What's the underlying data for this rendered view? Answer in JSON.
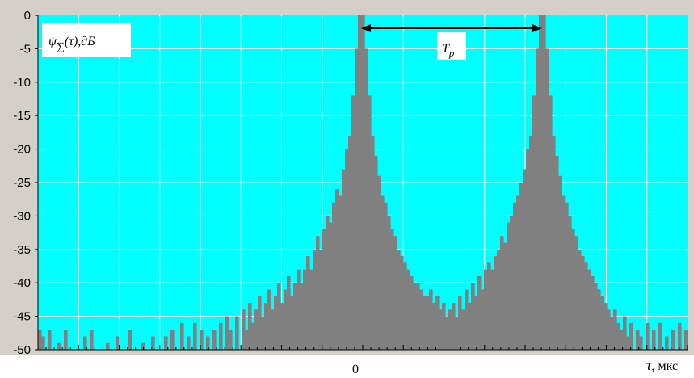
{
  "chart_data": {
    "type": "area",
    "title": "",
    "ylabel": "ψ∑(τ),∂Б",
    "xlabel": "τ, мкс",
    "x_tick_labels": [
      "0"
    ],
    "y_ticks": [
      0,
      -5,
      -10,
      -15,
      -20,
      -25,
      -30,
      -35,
      -40,
      -45,
      -50
    ],
    "ylim": [
      -50,
      0
    ],
    "grid": true,
    "background_color": "#00FFFF",
    "fill_color": "#808080",
    "grid_color": "#FFFFFF",
    "annotation": {
      "label": "T",
      "subscript": "p",
      "type": "double-arrow between peaks"
    },
    "series": [
      {
        "values": [
          -47,
          -48,
          -50,
          -47,
          -50,
          -50,
          -49,
          -50,
          -47,
          -50,
          -50,
          -50,
          -50,
          -50,
          -48,
          -50,
          -47,
          -50,
          -50,
          -50,
          -50,
          -49,
          -50,
          -50,
          -48,
          -50,
          -50,
          -50,
          -47,
          -50,
          -50,
          -50,
          -49,
          -50,
          -50,
          -48,
          -50,
          -50,
          -50,
          -48,
          -50,
          -47,
          -50,
          -50,
          -46,
          -50,
          -48,
          -50,
          -46,
          -50,
          -47,
          -50,
          -48,
          -50,
          -47,
          -50,
          -46,
          -50,
          -45,
          -47,
          -50,
          -45,
          -50,
          -44,
          -47,
          -43,
          -46,
          -44,
          -42,
          -45,
          -43,
          -41,
          -44,
          -42,
          -40,
          -43,
          -41,
          -39,
          -42,
          -40,
          -38,
          -40,
          -38,
          -36,
          -38,
          -35,
          -33,
          -35,
          -32,
          -30,
          -31,
          -28,
          -26,
          -27,
          -23,
          -20,
          -18,
          -12,
          -5,
          0,
          0,
          -5,
          -12,
          -18,
          -21,
          -24,
          -27,
          -28,
          -30,
          -32,
          -33,
          -35,
          -36,
          -37,
          -38,
          -39,
          -40,
          -40,
          -41,
          -42,
          -42,
          -41,
          -43,
          -42,
          -44,
          -43,
          -45,
          -44,
          -43,
          -45,
          -42,
          -44,
          -41,
          -43,
          -40,
          -42,
          -39,
          -41,
          -38,
          -37,
          -38,
          -36,
          -35,
          -33,
          -34,
          -31,
          -30,
          -28,
          -27,
          -25,
          -23,
          -20,
          -18,
          -12,
          -5,
          0,
          0,
          -5,
          -12,
          -18,
          -21,
          -24,
          -27,
          -28,
          -30,
          -32,
          -33,
          -35,
          -36,
          -37,
          -38,
          -39,
          -40,
          -41,
          -42,
          -43,
          -44,
          -45,
          -44,
          -46,
          -47,
          -45,
          -48,
          -46,
          -50,
          -47,
          -48,
          -50,
          -46,
          -50,
          -47,
          -50,
          -46,
          -50,
          -48,
          -50,
          -47,
          -50,
          -46,
          -50,
          -47
        ]
      }
    ]
  }
}
